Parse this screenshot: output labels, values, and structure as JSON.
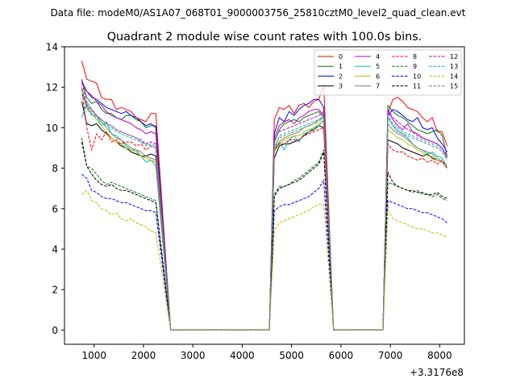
{
  "suptitle": "Data file: modeM0/AS1A07_068T01_9000003756_25810cztM0_level2_quad_clean.evt",
  "chart_data": {
    "type": "line",
    "title": "Quadrant 2 module wise count rates with 100.0s bins.",
    "xlabel": "",
    "ylabel": "",
    "x_offset_label": "+3.3176e8",
    "xlim": [
      400,
      8500
    ],
    "ylim": [
      -0.7,
      14
    ],
    "xticks": [
      1000,
      2000,
      3000,
      4000,
      5000,
      6000,
      7000,
      8000
    ],
    "xtick_labels": [
      "1000",
      "2000",
      "3000",
      "4000",
      "5000",
      "6000",
      "7000",
      "8000"
    ],
    "yticks": [
      0,
      2,
      4,
      6,
      8,
      10,
      12,
      14
    ],
    "ytick_labels": [
      "0",
      "2",
      "4",
      "6",
      "8",
      "10",
      "12",
      "14"
    ],
    "legend_position": "top-right",
    "legend_columns": 4,
    "segments": [
      {
        "start": 750,
        "end": 2350
      },
      {
        "start": 4650,
        "end": 5650
      },
      {
        "start": 6950,
        "end": 8150
      }
    ],
    "zero_range": [
      2550,
      6850
    ],
    "bin_width": 100,
    "series": [
      {
        "name": "0",
        "color": "#ff0000",
        "dash": "solid",
        "segments": [
          [
            13.3,
            12.4,
            12.3,
            12.2,
            11.5,
            11.4,
            11.4,
            10.9,
            11.0,
            10.9,
            10.8,
            10.5,
            10.4,
            10.3,
            10.7,
            10.7
          ],
          [
            10.4,
            11.0,
            10.9,
            11.1,
            10.7,
            11.1,
            11.2,
            11.0,
            11.3,
            11.4,
            12.1
          ],
          [
            10.7,
            11.4,
            11.5,
            11.3,
            11.0,
            10.9,
            10.8,
            10.5,
            10.3,
            10.5,
            9.8,
            9.8,
            9.1
          ]
        ]
      },
      {
        "name": "1",
        "color": "#008000",
        "dash": "solid",
        "segments": [
          [
            12.4,
            11.5,
            11.2,
            11.3,
            10.9,
            10.7,
            10.7,
            10.5,
            10.4,
            10.6,
            10.6,
            10.4,
            10.3,
            10.0,
            10.1,
            10.1
          ],
          [
            9.3,
            9.9,
            10.2,
            10.3,
            10.4,
            10.3,
            10.5,
            10.6,
            10.7,
            10.8,
            10.5
          ],
          [
            11.1,
            10.8,
            10.6,
            10.5,
            10.3,
            10.1,
            9.9,
            9.8,
            9.7,
            9.8,
            9.9,
            9.6,
            8.6
          ]
        ]
      },
      {
        "name": "2",
        "color": "#0000ff",
        "dash": "solid",
        "segments": [
          [
            12.3,
            11.8,
            11.5,
            11.4,
            11.2,
            11.0,
            10.9,
            10.8,
            10.7,
            10.8,
            10.6,
            10.5,
            10.3,
            10.1,
            10.2,
            10.0
          ],
          [
            9.7,
            10.5,
            10.3,
            10.8,
            10.6,
            10.9,
            11.1,
            11.2,
            11.4,
            11.4,
            11.0
          ],
          [
            10.6,
            10.9,
            10.8,
            10.6,
            10.4,
            10.3,
            10.5,
            10.0,
            9.9,
            10.0,
            9.5,
            9.2,
            8.8
          ]
        ]
      },
      {
        "name": "3",
        "color": "#000000",
        "dash": "solid",
        "segments": [
          [
            11.3,
            10.2,
            10.1,
            10.2,
            9.9,
            9.7,
            9.5,
            9.3,
            9.1,
            9.0,
            8.8,
            8.7,
            8.6,
            8.6,
            8.7,
            8.6
          ],
          [
            8.5,
            9.1,
            9.2,
            9.2,
            9.3,
            9.4,
            9.6,
            9.8,
            9.9,
            10.1,
            10.0
          ],
          [
            9.4,
            9.3,
            9.2,
            9.0,
            8.9,
            8.8,
            8.7,
            8.6,
            8.7,
            8.5,
            8.4,
            8.3,
            8.0
          ]
        ]
      },
      {
        "name": "4",
        "color": "#bf00bf",
        "dash": "solid",
        "segments": [
          [
            12.2,
            11.8,
            11.6,
            11.3,
            11.1,
            10.8,
            10.6,
            10.5,
            10.4,
            10.3,
            10.2,
            10.0,
            9.9,
            9.7,
            9.8,
            9.7
          ],
          [
            9.5,
            10.1,
            10.3,
            10.4,
            10.2,
            10.5,
            10.6,
            10.8,
            10.9,
            10.9,
            10.6
          ],
          [
            10.8,
            10.4,
            10.1,
            9.9,
            10.2,
            9.8,
            9.7,
            9.5,
            9.4,
            9.3,
            9.2,
            9.0,
            8.5
          ]
        ]
      },
      {
        "name": "5",
        "color": "#00bfbf",
        "dash": "solid",
        "segments": [
          [
            10.5,
            11.2,
            10.6,
            10.6,
            10.1,
            10.3,
            9.7,
            9.6,
            9.4,
            9.1,
            8.9,
            8.9,
            8.6,
            8.3,
            8.4,
            8.1
          ],
          [
            9.0,
            9.3,
            8.9,
            9.4,
            9.6,
            9.3,
            9.7,
            9.8,
            10.0,
            10.1,
            10.4
          ],
          [
            10.5,
            10.1,
            9.8,
            9.7,
            9.5,
            9.2,
            9.0,
            8.9,
            8.7,
            8.8,
            8.6,
            8.5,
            8.1
          ]
        ]
      },
      {
        "name": "6",
        "color": "#bfbf00",
        "dash": "solid",
        "segments": [
          [
            12.0,
            11.0,
            10.7,
            10.4,
            10.1,
            9.8,
            9.5,
            9.3,
            9.2,
            9.0,
            8.9,
            8.8,
            8.6,
            8.5,
            8.4,
            8.3
          ],
          [
            8.8,
            9.2,
            9.4,
            9.5,
            9.6,
            9.6,
            9.8,
            9.9,
            10.0,
            10.2,
            10.3
          ],
          [
            9.9,
            9.7,
            9.5,
            9.4,
            9.2,
            9.1,
            8.9,
            8.8,
            8.6,
            8.6,
            8.4,
            8.3,
            8.2
          ]
        ]
      },
      {
        "name": "7",
        "color": "#808080",
        "dash": "solid",
        "segments": [
          [
            11.6,
            11.3,
            10.9,
            10.6,
            10.3,
            10.0,
            9.7,
            9.5,
            9.4,
            9.2,
            9.0,
            8.9,
            8.8,
            8.6,
            8.5,
            8.4
          ],
          [
            8.9,
            9.3,
            9.5,
            9.6,
            9.7,
            9.8,
            10.0,
            10.1,
            10.2,
            10.4,
            10.5
          ],
          [
            10.2,
            9.9,
            9.7,
            9.6,
            9.4,
            9.2,
            9.0,
            8.9,
            8.8,
            8.7,
            8.5,
            8.3,
            8.0
          ]
        ]
      },
      {
        "name": "8",
        "color": "#ff0000",
        "dash": "dashed",
        "segments": [
          [
            11.9,
            10.0,
            8.9,
            9.7,
            9.4,
            9.8,
            9.3,
            9.4,
            9.2,
            9.3,
            9.3,
            9.1,
            9.2,
            8.9,
            9.1,
            9.0
          ],
          [
            8.9,
            9.2,
            9.2,
            9.4,
            9.4,
            9.4,
            9.6,
            9.7,
            9.8,
            9.9,
            10.0
          ],
          [
            9.2,
            8.9,
            8.8,
            8.8,
            8.6,
            8.5,
            8.4,
            8.5,
            8.3,
            8.4,
            8.2,
            8.4,
            8.0
          ]
        ]
      },
      {
        "name": "9",
        "color": "#008000",
        "dash": "dashed",
        "segments": [
          [
            9.5,
            8.1,
            8.0,
            7.7,
            7.4,
            7.2,
            7.3,
            7.2,
            7.1,
            7.0,
            6.9,
            6.8,
            6.7,
            6.6,
            6.5,
            6.4
          ],
          [
            6.7,
            7.1,
            7.1,
            7.2,
            7.4,
            7.5,
            7.7,
            7.9,
            8.1,
            8.3,
            8.9
          ],
          [
            7.3,
            7.2,
            7.1,
            7.0,
            6.9,
            6.8,
            6.9,
            6.7,
            6.7,
            6.6,
            6.7,
            6.5,
            6.4
          ]
        ]
      },
      {
        "name": "10",
        "color": "#0000ff",
        "dash": "dashed",
        "segments": [
          [
            7.7,
            7.5,
            6.9,
            6.8,
            6.6,
            6.5,
            6.5,
            6.4,
            6.3,
            6.3,
            6.2,
            6.1,
            6.0,
            5.9,
            5.9,
            5.8
          ],
          [
            5.9,
            6.1,
            6.2,
            6.2,
            6.3,
            6.4,
            6.5,
            6.6,
            6.8,
            7.0,
            7.4
          ],
          [
            6.4,
            6.3,
            6.2,
            6.1,
            6.0,
            6.0,
            5.9,
            5.8,
            5.8,
            5.7,
            5.6,
            5.5,
            5.3
          ]
        ]
      },
      {
        "name": "11",
        "color": "#000000",
        "dash": "dashed",
        "segments": [
          [
            9.3,
            8.1,
            7.7,
            7.4,
            7.2,
            7.1,
            7.2,
            7.0,
            6.9,
            6.9,
            6.8,
            6.7,
            6.6,
            6.5,
            6.4,
            6.3
          ],
          [
            6.6,
            7.0,
            7.1,
            7.2,
            7.3,
            7.4,
            7.6,
            7.8,
            8.0,
            8.2,
            8.8
          ],
          [
            7.8,
            7.3,
            7.1,
            7.0,
            6.9,
            6.9,
            6.8,
            6.8,
            6.7,
            6.7,
            6.8,
            6.6,
            6.5
          ]
        ]
      },
      {
        "name": "12",
        "color": "#bf00bf",
        "dash": "dashed",
        "segments": [
          [
            12.4,
            11.1,
            10.9,
            10.6,
            10.4,
            10.2,
            10.1,
            9.9,
            9.8,
            9.7,
            9.6,
            9.5,
            9.4,
            9.2,
            9.3,
            9.2
          ],
          [
            9.4,
            9.8,
            9.9,
            10.0,
            10.1,
            10.2,
            10.3,
            10.4,
            10.5,
            10.6,
            10.8
          ],
          [
            10.9,
            10.5,
            10.3,
            10.1,
            9.9,
            9.8,
            9.6,
            9.5,
            9.4,
            9.3,
            9.2,
            9.0,
            8.6
          ]
        ]
      },
      {
        "name": "13",
        "color": "#00bfbf",
        "dash": "dashed",
        "segments": [
          [
            11.9,
            10.9,
            10.7,
            10.5,
            10.3,
            10.1,
            10.0,
            9.8,
            9.7,
            9.6,
            9.5,
            9.4,
            9.3,
            9.1,
            9.2,
            9.1
          ],
          [
            9.1,
            9.6,
            9.7,
            9.8,
            9.9,
            10.0,
            10.1,
            10.2,
            10.3,
            10.4,
            10.6
          ],
          [
            10.6,
            10.2,
            10.0,
            9.8,
            9.7,
            9.6,
            9.5,
            9.4,
            9.3,
            9.2,
            9.1,
            8.9,
            8.5
          ]
        ]
      },
      {
        "name": "14",
        "color": "#bfbf00",
        "dash": "dashed",
        "segments": [
          [
            6.7,
            6.9,
            6.4,
            6.3,
            6.0,
            5.9,
            5.7,
            5.8,
            5.5,
            5.4,
            5.5,
            5.3,
            5.2,
            5.1,
            4.9,
            4.8
          ],
          [
            4.9,
            5.3,
            5.4,
            5.5,
            5.6,
            5.7,
            5.8,
            5.9,
            6.1,
            6.2,
            6.2
          ],
          [
            5.9,
            5.5,
            5.4,
            5.3,
            5.2,
            5.1,
            5.0,
            5.0,
            4.9,
            4.8,
            4.8,
            4.7,
            4.6
          ]
        ]
      },
      {
        "name": "15",
        "color": "#808080",
        "dash": "dashed",
        "segments": [
          [
            12.0,
            11.0,
            10.8,
            10.6,
            10.4,
            10.2,
            10.1,
            9.9,
            9.8,
            9.7,
            9.6,
            9.5,
            9.3,
            9.2,
            9.1,
            9.0
          ],
          [
            9.0,
            9.5,
            9.6,
            9.7,
            9.8,
            9.9,
            10.0,
            10.1,
            10.2,
            10.3,
            10.5
          ],
          [
            10.5,
            10.1,
            9.9,
            9.7,
            9.6,
            9.5,
            9.4,
            9.3,
            9.2,
            9.1,
            9.0,
            8.8,
            8.4
          ]
        ]
      }
    ]
  }
}
